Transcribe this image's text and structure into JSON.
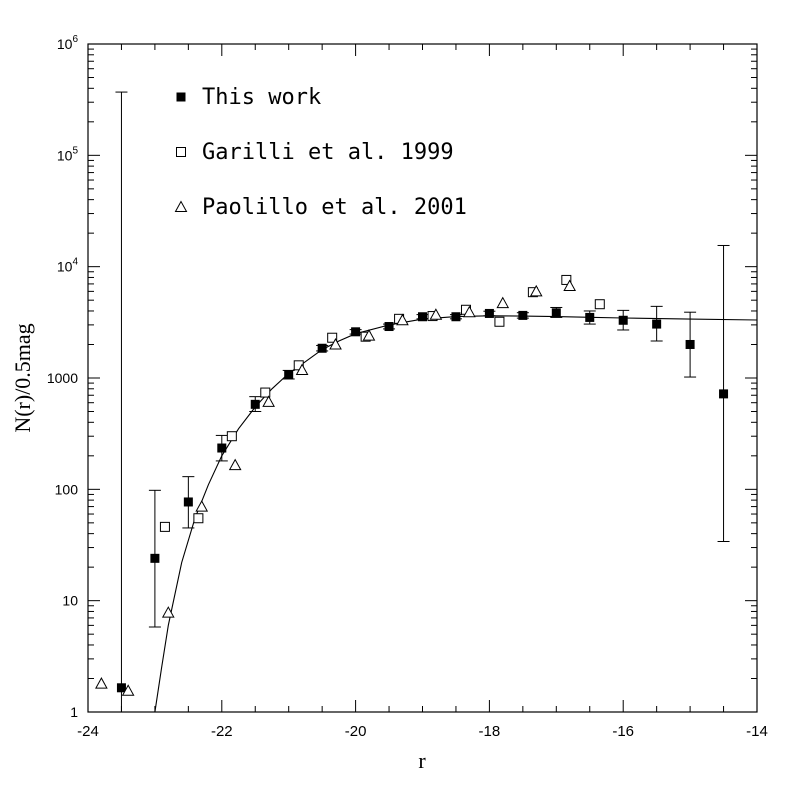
{
  "chart_data": {
    "type": "scatter",
    "xlabel": "r",
    "ylabel": "N(r)/0.5mag",
    "xlim": [
      -24,
      -14
    ],
    "ylim": [
      1,
      1000000
    ],
    "yscale": "log",
    "x_ticks": [
      -24,
      -22,
      -20,
      -18,
      -16,
      -14
    ],
    "x_tick_labels": [
      "-24",
      "-22",
      "-20",
      "-18",
      "-16",
      "-14"
    ],
    "y_ticks": [
      1,
      10,
      100,
      1000,
      10000,
      100000,
      1000000
    ],
    "y_tick_labels": [
      {
        "base": "1",
        "exp": ""
      },
      {
        "base": "10",
        "exp": ""
      },
      {
        "base": "100",
        "exp": ""
      },
      {
        "base": "1000",
        "exp": ""
      },
      {
        "base": "10",
        "exp": "4"
      },
      {
        "base": "10",
        "exp": "5"
      },
      {
        "base": "10",
        "exp": "6"
      }
    ],
    "legend_position": "top-left",
    "series": [
      {
        "name": "This work",
        "marker": "filled-square",
        "points": [
          {
            "x": -23.5,
            "y": 1.65,
            "ylo": 1,
            "yhi": 370000
          },
          {
            "x": -23.0,
            "y": 24,
            "ylo": 5.8,
            "yhi": 98
          },
          {
            "x": -22.5,
            "y": 77,
            "ylo": 45,
            "yhi": 130
          },
          {
            "x": -22.0,
            "y": 235,
            "ylo": 180,
            "yhi": 305
          },
          {
            "x": -21.5,
            "y": 580,
            "ylo": 500,
            "yhi": 680
          },
          {
            "x": -21.0,
            "y": 1070,
            "ylo": 980,
            "yhi": 1170
          },
          {
            "x": -20.5,
            "y": 1850,
            "ylo": 1750,
            "yhi": 1960
          },
          {
            "x": -20.0,
            "y": 2600,
            "ylo": 2480,
            "yhi": 2720
          },
          {
            "x": -19.5,
            "y": 2900,
            "ylo": 2760,
            "yhi": 3050
          },
          {
            "x": -19.0,
            "y": 3550,
            "ylo": 3400,
            "yhi": 3710
          },
          {
            "x": -18.5,
            "y": 3550,
            "ylo": 3400,
            "yhi": 3710
          },
          {
            "x": -18.0,
            "y": 3800,
            "ylo": 3620,
            "yhi": 3980
          },
          {
            "x": -17.5,
            "y": 3650,
            "ylo": 3450,
            "yhi": 3860
          },
          {
            "x": -17.0,
            "y": 3850,
            "ylo": 3500,
            "yhi": 4300
          },
          {
            "x": -16.5,
            "y": 3500,
            "ylo": 3050,
            "yhi": 4000
          },
          {
            "x": -16.0,
            "y": 3300,
            "ylo": 2700,
            "yhi": 4050
          },
          {
            "x": -15.5,
            "y": 3050,
            "ylo": 2150,
            "yhi": 4400
          },
          {
            "x": -15.0,
            "y": 2000,
            "ylo": 1020,
            "yhi": 3900
          },
          {
            "x": -14.5,
            "y": 720,
            "ylo": 34,
            "yhi": 15500
          }
        ]
      },
      {
        "name": "Garilli et al. 1999",
        "marker": "open-square",
        "points": [
          {
            "x": -22.85,
            "y": 46
          },
          {
            "x": -22.35,
            "y": 55
          },
          {
            "x": -21.85,
            "y": 300
          },
          {
            "x": -21.35,
            "y": 740
          },
          {
            "x": -20.85,
            "y": 1300
          },
          {
            "x": -20.35,
            "y": 2300
          },
          {
            "x": -19.85,
            "y": 2350
          },
          {
            "x": -19.35,
            "y": 3400
          },
          {
            "x": -18.85,
            "y": 3600
          },
          {
            "x": -18.35,
            "y": 4100
          },
          {
            "x": -17.85,
            "y": 3200
          },
          {
            "x": -17.35,
            "y": 5900
          },
          {
            "x": -16.85,
            "y": 7600
          },
          {
            "x": -16.35,
            "y": 4600
          }
        ]
      },
      {
        "name": "Paolillo et al. 2001",
        "marker": "open-triangle",
        "points": [
          {
            "x": -23.8,
            "y": 1.8
          },
          {
            "x": -23.4,
            "y": 1.55
          },
          {
            "x": -22.8,
            "y": 7.8
          },
          {
            "x": -22.3,
            "y": 70
          },
          {
            "x": -21.8,
            "y": 165
          },
          {
            "x": -21.3,
            "y": 610
          },
          {
            "x": -20.8,
            "y": 1180
          },
          {
            "x": -20.3,
            "y": 2000
          },
          {
            "x": -19.8,
            "y": 2400
          },
          {
            "x": -19.3,
            "y": 3300
          },
          {
            "x": -18.8,
            "y": 3700
          },
          {
            "x": -18.3,
            "y": 3900
          },
          {
            "x": -17.8,
            "y": 4700
          },
          {
            "x": -17.3,
            "y": 6000
          },
          {
            "x": -16.8,
            "y": 6700
          }
        ]
      }
    ],
    "fit_curve": [
      {
        "x": -23.0,
        "y": 1
      },
      {
        "x": -22.9,
        "y": 2.5
      },
      {
        "x": -22.8,
        "y": 6
      },
      {
        "x": -22.6,
        "y": 22
      },
      {
        "x": -22.4,
        "y": 55
      },
      {
        "x": -22.2,
        "y": 110
      },
      {
        "x": -22.0,
        "y": 200
      },
      {
        "x": -21.75,
        "y": 350
      },
      {
        "x": -21.5,
        "y": 550
      },
      {
        "x": -21.25,
        "y": 800
      },
      {
        "x": -21.0,
        "y": 1100
      },
      {
        "x": -20.75,
        "y": 1400
      },
      {
        "x": -20.5,
        "y": 1800
      },
      {
        "x": -20.25,
        "y": 2150
      },
      {
        "x": -20.0,
        "y": 2500
      },
      {
        "x": -19.5,
        "y": 3000
      },
      {
        "x": -19.0,
        "y": 3380
      },
      {
        "x": -18.5,
        "y": 3560
      },
      {
        "x": -18.0,
        "y": 3620
      },
      {
        "x": -17.5,
        "y": 3600
      },
      {
        "x": -17.0,
        "y": 3560
      },
      {
        "x": -16.5,
        "y": 3510
      },
      {
        "x": -16.0,
        "y": 3460
      },
      {
        "x": -15.0,
        "y": 3380
      },
      {
        "x": -14.0,
        "y": 3320
      }
    ]
  }
}
